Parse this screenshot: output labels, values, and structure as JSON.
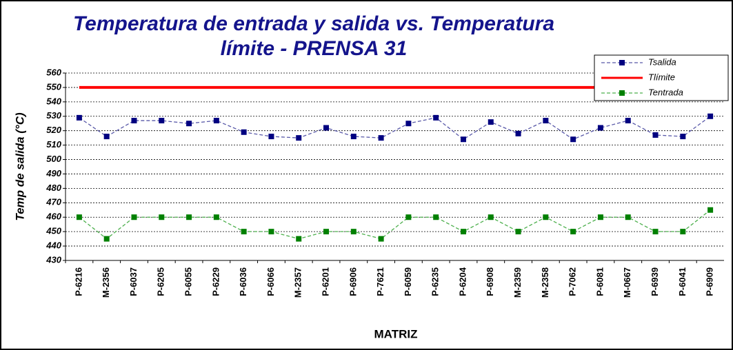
{
  "chart_data": {
    "type": "line",
    "title": [
      "Temperatura de entrada y salida vs. Temperatura",
      "límite - PRENSA 31"
    ],
    "x_label": "MATRIZ",
    "y_label": "Temp de salida (°C)",
    "categories": [
      "P-6216",
      "M-2356",
      "P-6037",
      "P-6205",
      "P-6055",
      "P-6229",
      "P-6036",
      "P-6066",
      "M-2357",
      "P-6201",
      "P-6906",
      "P-7621",
      "P-6059",
      "P-6235",
      "P-6204",
      "P-6908",
      "M-2359",
      "M-2358",
      "P-7062",
      "P-6081",
      "M-0667",
      "P-6939",
      "P-6041",
      "P-6909"
    ],
    "series": [
      {
        "name": "Tsalida",
        "color": "#000080",
        "line_color": "#5858a8",
        "line_style": "dashed",
        "markers": true,
        "values": [
          529,
          516,
          527,
          527,
          525,
          527,
          519,
          516,
          515,
          522,
          516,
          515,
          525,
          529,
          514,
          526,
          518,
          527,
          514,
          522,
          527,
          517,
          516,
          530
        ]
      },
      {
        "name": "Tlímite",
        "color": "#ff0000",
        "line_color": "#ff0000",
        "line_style": "solid",
        "markers": false,
        "values": [
          550,
          550,
          550,
          550,
          550,
          550,
          550,
          550,
          550,
          550,
          550,
          550,
          550,
          550,
          550,
          550,
          550,
          550,
          550,
          550,
          550,
          550,
          550,
          550
        ]
      },
      {
        "name": "Tentrada",
        "color": "#008000",
        "line_color": "#4caf4c",
        "line_style": "dashed",
        "markers": true,
        "values": [
          460,
          445,
          460,
          460,
          460,
          460,
          450,
          450,
          445,
          450,
          450,
          445,
          460,
          460,
          450,
          460,
          450,
          460,
          450,
          460,
          460,
          450,
          450,
          465
        ]
      }
    ],
    "ylim": [
      430,
      560
    ],
    "yticks": [
      430,
      440,
      450,
      460,
      470,
      480,
      490,
      500,
      510,
      520,
      530,
      540,
      550,
      560
    ],
    "grid": true,
    "legend": "top-right"
  }
}
